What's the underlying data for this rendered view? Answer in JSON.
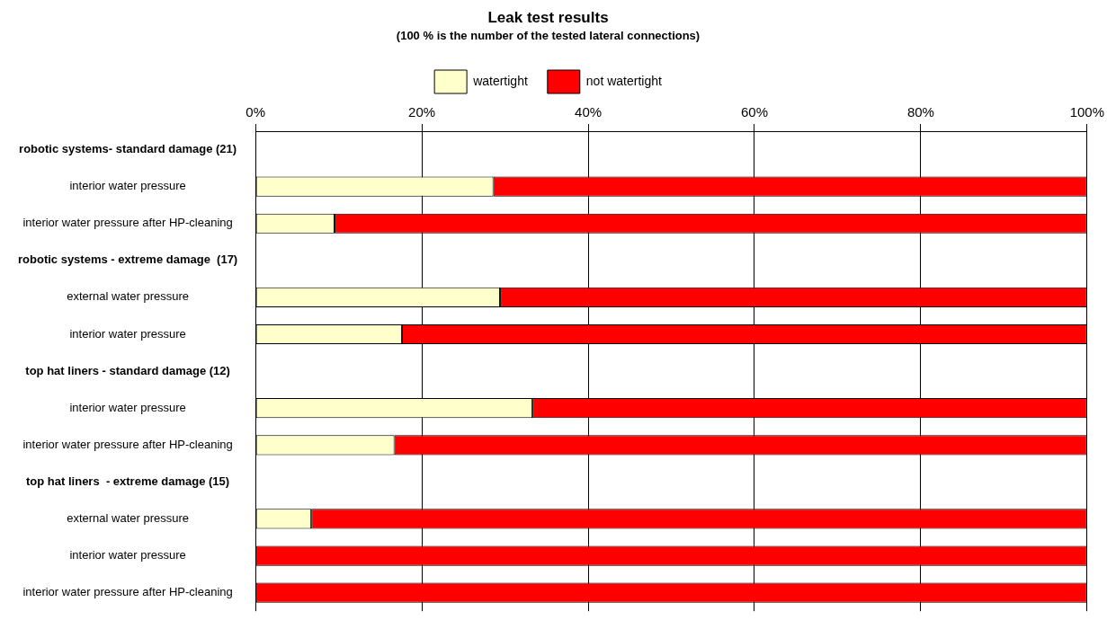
{
  "chart_data": {
    "type": "bar",
    "orientation": "horizontal",
    "stacked": true,
    "title": "Leak test results",
    "subtitle": "(100 % is the number of the tested lateral connections)",
    "categories": [
      "robotic systems- standard damage (21)",
      "interior water pressure",
      "interior water pressure after HP-cleaning",
      "robotic systems - extreme damage  (17)",
      "external water pressure",
      "interior water pressure",
      "top hat liners - standard damage (12)",
      "interior water pressure",
      "interior water pressure after HP-cleaning",
      "top hat liners  - extreme damage (15)",
      "external water pressure",
      "interior water pressure",
      "interior water pressure after HP-cleaning"
    ],
    "series": [
      {
        "name": "watertight",
        "color": "#ffffcc",
        "values": [
          null,
          28.6,
          9.5,
          null,
          29.4,
          17.6,
          null,
          33.3,
          16.7,
          null,
          6.7,
          0,
          0
        ]
      },
      {
        "name": "not watertight",
        "color": "#ff0000",
        "values": [
          null,
          71.4,
          90.5,
          null,
          70.6,
          82.4,
          null,
          66.7,
          83.3,
          null,
          93.3,
          100,
          100
        ]
      }
    ],
    "xlim": [
      0,
      100
    ],
    "xticks": [
      {
        "value": 0,
        "label": "0%"
      },
      {
        "value": 20,
        "label": "20%"
      },
      {
        "value": 40,
        "label": "40%"
      },
      {
        "value": 60,
        "label": "60%"
      },
      {
        "value": 80,
        "label": "80%"
      },
      {
        "value": 100,
        "label": "100%"
      }
    ],
    "grid": "x",
    "legend": "top"
  }
}
